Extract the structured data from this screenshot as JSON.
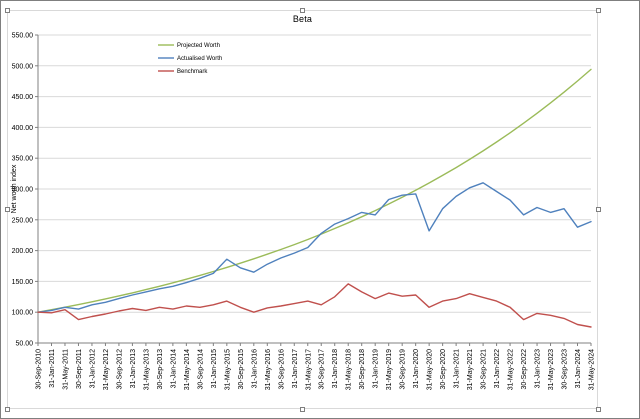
{
  "window": {
    "background": "#ffffff",
    "border_color": "#7f7f7f"
  },
  "chart_data": {
    "type": "line",
    "title": "Beta",
    "xlabel": "",
    "ylabel": "Net worth index",
    "ylim": [
      50,
      550
    ],
    "ytick_step": 50,
    "ytick_labels": [
      "50.00",
      "100.00",
      "150.00",
      "200.00",
      "250.00",
      "300.00",
      "350.00",
      "400.00",
      "450.00",
      "500.00",
      "550.00"
    ],
    "grid": true,
    "legend_position": "inside-top-left",
    "categories": [
      "30-Sep-2010",
      "31-Jan-2011",
      "31-May-2011",
      "30-Sep-2011",
      "31-Jan-2012",
      "31-May-2012",
      "30-Sep-2012",
      "31-Jan-2013",
      "31-May-2013",
      "30-Sep-2013",
      "31-Jan-2014",
      "31-May-2014",
      "30-Sep-2014",
      "31-Jan-2015",
      "31-May-2015",
      "30-Sep-2015",
      "31-Jan-2016",
      "31-May-2016",
      "30-Sep-2016",
      "31-Jan-2017",
      "31-May-2017",
      "30-Sep-2017",
      "31-Jan-2018",
      "31-May-2018",
      "30-Sep-2018",
      "31-Jan-2019",
      "31-May-2019",
      "30-Sep-2019",
      "31-Jan-2020",
      "31-May-2020",
      "30-Sep-2020",
      "31-Jan-2021",
      "31-May-2021",
      "30-Sep-2021",
      "31-Jan-2022",
      "31-May-2022",
      "30-Sep-2022",
      "31-Jan-2023",
      "31-May-2023",
      "30-Sep-2023",
      "31-Jan-2024",
      "31-May-2024"
    ],
    "series": [
      {
        "name": "Projected Worth",
        "color": "#9BBB59",
        "values": [
          100,
          104,
          108.1,
          112.4,
          116.9,
          121.6,
          126.4,
          131.4,
          136.7,
          142.1,
          147.8,
          153.6,
          159.7,
          166.1,
          172.7,
          179.5,
          186.7,
          194.1,
          201.8,
          209.8,
          218.1,
          226.8,
          235.8,
          245.2,
          254.9,
          265,
          275.6,
          286.5,
          297.9,
          309.7,
          322,
          334.8,
          348.1,
          361.9,
          376.3,
          391.2,
          406.8,
          422.9,
          439.7,
          457.2,
          475.3,
          494.2
        ]
      },
      {
        "name": "Actualised Worth",
        "color": "#4F81BD",
        "values": [
          100,
          103,
          108,
          105,
          112,
          116,
          122,
          128,
          133,
          138,
          142,
          148,
          155,
          163,
          186,
          172,
          165,
          178,
          188,
          196,
          205,
          228,
          243,
          252,
          262,
          258,
          283,
          290,
          292,
          232,
          268,
          288,
          302,
          310,
          296,
          282,
          258,
          270,
          262,
          268,
          238,
          247
        ]
      },
      {
        "name": "Benchmark",
        "color": "#C0504D",
        "values": [
          100,
          99,
          104,
          88,
          93,
          97,
          102,
          106,
          103,
          108,
          105,
          110,
          108,
          112,
          118,
          108,
          100,
          107,
          110,
          114,
          118,
          112,
          125,
          146,
          133,
          122,
          131,
          126,
          128,
          108,
          118,
          122,
          130,
          124,
          118,
          108,
          88,
          98,
          95,
          90,
          80,
          76
        ]
      }
    ]
  }
}
